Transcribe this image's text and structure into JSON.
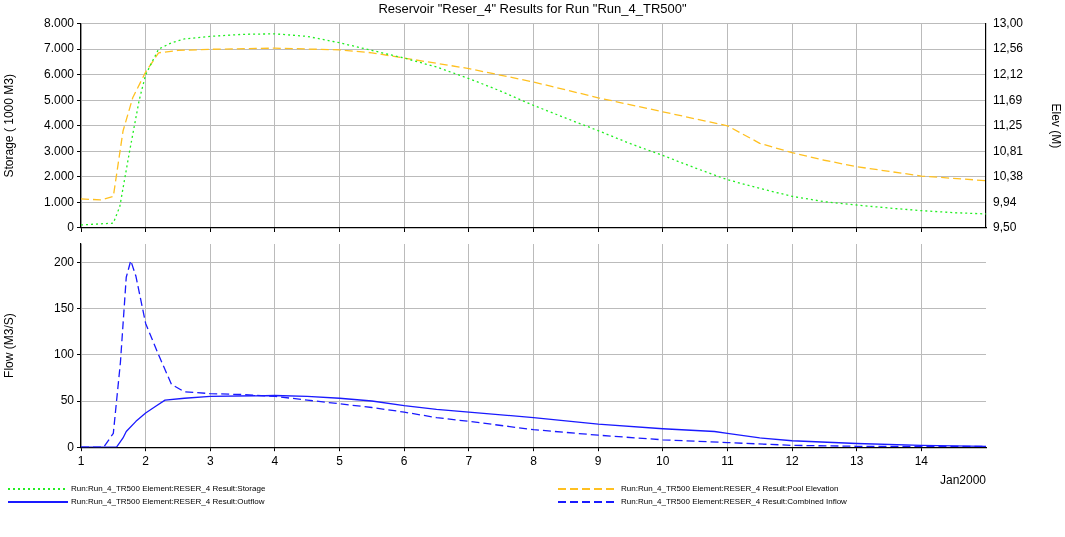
{
  "chart_data": [
    {
      "type": "line",
      "title": "Reservoir \"Reser_4\" Results for Run \"Run_4_TR500\"",
      "ylabel": "Storage ( 1000 M3)",
      "y2label": "Elev (M)",
      "xlim": [
        1,
        15
      ],
      "xticks": [
        1,
        2,
        3,
        4,
        5,
        6,
        7,
        8,
        9,
        10,
        11,
        12,
        13,
        14
      ],
      "ylim": [
        0,
        8000
      ],
      "yticks": [
        0,
        {
          "value": 1000,
          "label": "1.000"
        },
        {
          "value": 2000,
          "label": "2.000"
        },
        {
          "value": 3000,
          "label": "3.000"
        },
        {
          "value": 4000,
          "label": "4.000"
        },
        {
          "value": 5000,
          "label": "5.000"
        },
        {
          "value": 6000,
          "label": "6.000"
        },
        {
          "value": 7000,
          "label": "7.000"
        },
        {
          "value": 8000,
          "label": "8.000"
        }
      ],
      "y2lim": [
        9.5,
        13
      ],
      "y2ticks": [
        {
          "value": 9.5,
          "label": "9,50"
        },
        {
          "value": 9.9375,
          "label": "9,94"
        },
        {
          "value": 10.375,
          "label": "10,38"
        },
        {
          "value": 10.8125,
          "label": "10,81"
        },
        {
          "value": 11.25,
          "label": "11,25"
        },
        {
          "value": 11.6875,
          "label": "11,69"
        },
        {
          "value": 12.125,
          "label": "12,12"
        },
        {
          "value": 12.5625,
          "label": "12,56"
        },
        {
          "value": 13,
          "label": "13,00"
        }
      ],
      "grid": true,
      "legend": "bottom",
      "marker": "none",
      "tick_labels": "y",
      "series": [
        {
          "name": "Run:Run_4_TR500 Element:RESER_4 Result:Storage",
          "color": "#22ee22",
          "line_style": "dotted",
          "x": [
            1,
            1.5,
            1.6,
            1.75,
            1.9,
            2,
            2.2,
            2.4,
            2.6,
            3,
            3.5,
            4,
            4.5,
            5,
            5.5,
            6,
            6.5,
            7,
            7.5,
            8,
            8.5,
            9,
            9.5,
            10,
            10.5,
            11,
            11.5,
            12,
            12.5,
            13,
            13.5,
            14,
            14.5,
            15
          ],
          "values": [
            120,
            190,
            840,
            2980,
            5000,
            6000,
            7000,
            7250,
            7400,
            7500,
            7580,
            7600,
            7500,
            7250,
            6950,
            6650,
            6300,
            5850,
            5350,
            4800,
            4300,
            3810,
            3300,
            2840,
            2350,
            1890,
            1550,
            1240,
            1030,
            900,
            780,
            680,
            600,
            550
          ]
        },
        {
          "name": "Run:Run_4_TR500 Element:RESER_4 Result:Pool Elevation",
          "color": "#ffc020",
          "line_style": "dashed",
          "axis": "y2",
          "x": [
            1,
            1.3,
            1.5,
            1.65,
            1.8,
            2,
            2.2,
            2.5,
            3,
            4,
            5,
            5.5,
            6,
            7,
            8,
            9,
            10,
            11,
            11.5,
            12,
            12.5,
            13,
            14,
            15
          ],
          "values": [
            10.0,
            9.98,
            10.04,
            11.16,
            11.73,
            12.17,
            12.5,
            12.54,
            12.56,
            12.58,
            12.55,
            12.5,
            12.41,
            12.23,
            12.0,
            11.73,
            11.49,
            11.25,
            10.95,
            10.79,
            10.66,
            10.55,
            10.39,
            10.31
          ]
        }
      ]
    },
    {
      "type": "line",
      "ylabel": "Flow (M3/S)",
      "xlabel": "Jan2000",
      "xlim": [
        1,
        15
      ],
      "xticks": [
        1,
        2,
        3,
        4,
        5,
        6,
        7,
        8,
        9,
        10,
        11,
        12,
        13,
        14
      ],
      "ylim": [
        0,
        220
      ],
      "yticks": [
        0,
        50,
        100,
        150,
        200
      ],
      "grid": true,
      "legend": "bottom",
      "marker": "none",
      "series": [
        {
          "name": "Run:Run_4_TR500 Element:RESER_4 Result:Outflow",
          "color": "#1a1aff",
          "line_style": "solid",
          "x": [
            1,
            1.55,
            1.65,
            1.7,
            1.85,
            2,
            2.15,
            2.3,
            2.6,
            3,
            4,
            4.5,
            5,
            5.5,
            6,
            6.5,
            7,
            8,
            9,
            10,
            10.8,
            11,
            11.5,
            12,
            13,
            14,
            15
          ],
          "values": [
            0,
            0,
            10,
            17,
            28,
            37,
            44,
            51,
            53,
            55,
            56,
            55,
            53,
            50,
            45,
            41,
            38,
            32,
            25,
            20,
            17,
            15,
            10,
            7,
            4,
            2,
            1
          ]
        },
        {
          "name": "Run:Run_4_TR500 Element:RESER_4 Result:Combined Inflow",
          "color": "#1a1aff",
          "line_style": "dashed",
          "x": [
            1,
            1.35,
            1.5,
            1.61,
            1.7,
            1.77,
            1.85,
            2,
            2.2,
            2.4,
            2.6,
            3,
            3.5,
            4,
            4.5,
            5,
            5.5,
            6,
            6.5,
            7,
            8,
            9,
            10,
            11,
            12,
            13,
            14,
            15
          ],
          "values": [
            0,
            0,
            15,
            92,
            184,
            202,
            185,
            134,
            100,
            68,
            60,
            58,
            57,
            55,
            51,
            47,
            43,
            38,
            32,
            28,
            19,
            13,
            8,
            5,
            2,
            1,
            1,
            1
          ]
        }
      ]
    }
  ]
}
